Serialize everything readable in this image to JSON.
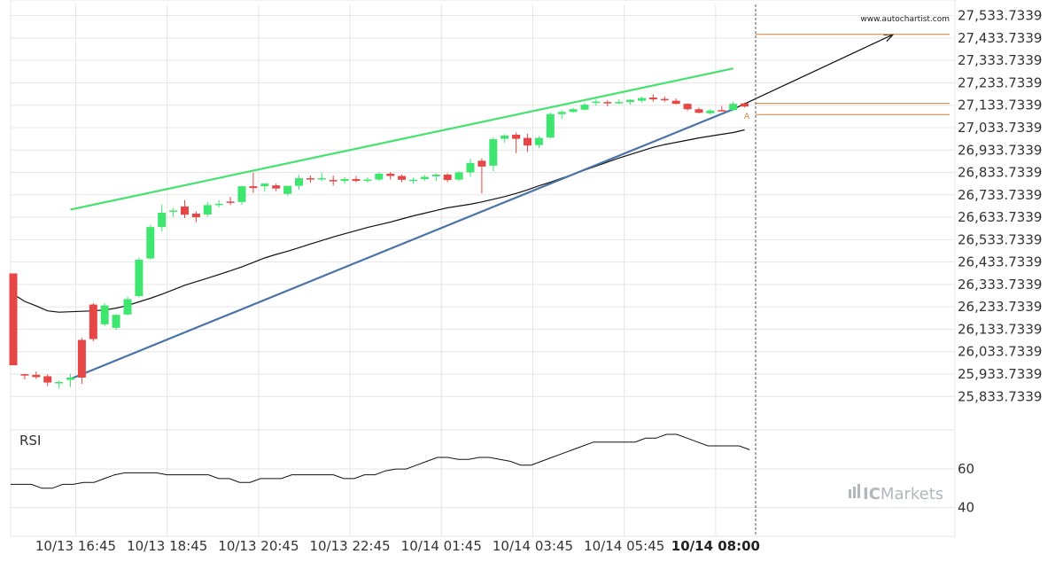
{
  "watermark": "www.autochartist.com",
  "brand": {
    "prefix": "IC",
    "name": "Markets",
    "color": "#b0b8bc"
  },
  "colors": {
    "bull": "#3ee66f",
    "bear": "#e64646",
    "resistance": "#45e270",
    "support": "#4a73a8",
    "projection": "#111111",
    "level": "#d08030",
    "ma": "#111111",
    "grid": "#e6e6e6"
  },
  "chart_data": [
    {
      "type": "candlestick",
      "title": "",
      "ylim": [
        25743.7339,
        27583.7339
      ],
      "y_ticks": [
        "27,533.7339",
        "27,433.7339",
        "27,333.7339",
        "27,233.7339",
        "27,133.7339",
        "27,033.7339",
        "26,933.7339",
        "26,833.7339",
        "26,733.7339",
        "26,633.7339",
        "26,533.7339",
        "26,433.7339",
        "26,333.7339",
        "26,233.7339",
        "26,133.7339",
        "26,033.7339",
        "25,933.7339",
        "25,833.7339"
      ],
      "y_tick_values": [
        27533.7339,
        27433.7339,
        27333.7339,
        27233.7339,
        27133.7339,
        27033.7339,
        26933.7339,
        26833.7339,
        26733.7339,
        26633.7339,
        26533.7339,
        26433.7339,
        26333.7339,
        26233.7339,
        26133.7339,
        26033.7339,
        25933.7339,
        25833.7339
      ],
      "x_ticks": [
        "10/13 16:45",
        "10/13 18:45",
        "10/13 20:45",
        "10/13 22:45",
        "10/14 01:45",
        "10/14 03:45",
        "10/14 05:45",
        "10/14 08:00"
      ],
      "x_tick_index": [
        5,
        13,
        21,
        29,
        37,
        45,
        53,
        61
      ],
      "highlight_tick": "10/14 08:00",
      "candles": [
        [
          26383,
          26383,
          25973,
          25973
        ],
        [
          25933,
          25935,
          25910,
          25930
        ],
        [
          25930,
          25945,
          25912,
          25920
        ],
        [
          25924,
          25933,
          25880,
          25896
        ],
        [
          25898,
          25904,
          25868,
          25898
        ],
        [
          25908,
          25935,
          25876,
          25918
        ],
        [
          26086,
          26095,
          25890,
          25918
        ],
        [
          26244,
          26250,
          26080,
          26090
        ],
        [
          26156,
          26250,
          26148,
          26240
        ],
        [
          26140,
          26200,
          26130,
          26198
        ],
        [
          26200,
          26280,
          26196,
          26268
        ],
        [
          26282,
          26454,
          26276,
          26444
        ],
        [
          26450,
          26600,
          26444,
          26590
        ],
        [
          26590,
          26690,
          26570,
          26654
        ],
        [
          26658,
          26675,
          26635,
          26664
        ],
        [
          26682,
          26710,
          26630,
          26645
        ],
        [
          26650,
          26660,
          26612,
          26634
        ],
        [
          26646,
          26703,
          26636,
          26688
        ],
        [
          26692,
          26710,
          26678,
          26694
        ],
        [
          26704,
          26725,
          26688,
          26698
        ],
        [
          26702,
          26775,
          26690,
          26772
        ],
        [
          26772,
          26832,
          26742,
          26764
        ],
        [
          26772,
          26784,
          26748,
          26784
        ],
        [
          26776,
          26784,
          26750,
          26762
        ],
        [
          26738,
          26774,
          26730,
          26774
        ],
        [
          26774,
          26822,
          26758,
          26808
        ],
        [
          26808,
          26820,
          26788,
          26806
        ],
        [
          26807,
          26833,
          26796,
          26808
        ],
        [
          26800,
          26820,
          26775,
          26796
        ],
        [
          26796,
          26812,
          26784,
          26804
        ],
        [
          26804,
          26818,
          26790,
          26796
        ],
        [
          26797,
          26812,
          26788,
          26802
        ],
        [
          26802,
          26834,
          26796,
          26828
        ],
        [
          26828,
          26836,
          26802,
          26818
        ],
        [
          26818,
          26824,
          26790,
          26801
        ],
        [
          26799,
          26810,
          26784,
          26801
        ],
        [
          26804,
          26822,
          26796,
          26814
        ],
        [
          26816,
          26830,
          26795,
          26824
        ],
        [
          26824,
          26830,
          26790,
          26800
        ],
        [
          26802,
          26840,
          26795,
          26834
        ],
        [
          26834,
          26894,
          26814,
          26876
        ],
        [
          26886,
          26896,
          26740,
          26860
        ],
        [
          26864,
          26990,
          26840,
          26982
        ],
        [
          26984,
          27004,
          26966,
          26998
        ],
        [
          27002,
          27012,
          26920,
          26984
        ],
        [
          26988,
          27006,
          26926,
          26954
        ],
        [
          26956,
          26996,
          26942,
          26988
        ],
        [
          26990,
          27102,
          26984,
          27094
        ],
        [
          27094,
          27112,
          27072,
          27104
        ],
        [
          27104,
          27122,
          27100,
          27116
        ],
        [
          27114,
          27144,
          27110,
          27136
        ],
        [
          27146,
          27160,
          27132,
          27150
        ],
        [
          27148,
          27156,
          27128,
          27144
        ],
        [
          27146,
          27160,
          27140,
          27148
        ],
        [
          27148,
          27160,
          27136,
          27158
        ],
        [
          27154,
          27172,
          27146,
          27166
        ],
        [
          27168,
          27182,
          27150,
          27160
        ],
        [
          27162,
          27172,
          27148,
          27156
        ],
        [
          27154,
          27164,
          27138,
          27140
        ],
        [
          27140,
          27142,
          27108,
          27116
        ],
        [
          27116,
          27124,
          27098,
          27100
        ],
        [
          27098,
          27116,
          27092,
          27110
        ],
        [
          27112,
          27130,
          27106,
          27110
        ],
        [
          27112,
          27150,
          27108,
          27140
        ],
        [
          27142,
          27146,
          27124,
          27128
        ]
      ],
      "moving_average": [
        26290,
        26258,
        26238,
        26216,
        26210,
        26212,
        26214,
        26216,
        26220,
        26228,
        26240,
        26256,
        26272,
        26290,
        26310,
        26330,
        26346,
        26362,
        26378,
        26395,
        26412,
        26432,
        26452,
        26468,
        26482,
        26498,
        26514,
        26530,
        26546,
        26560,
        26574,
        26588,
        26600,
        26612,
        26626,
        26640,
        26652,
        26664,
        26676,
        26684,
        26692,
        26702,
        26714,
        26726,
        26740,
        26756,
        26774,
        26790,
        26808,
        26826,
        26844,
        26862,
        26880,
        26898,
        26914,
        26930,
        26946,
        26958,
        26968,
        26978,
        26988,
        26996,
        27004,
        27012,
        27024
      ],
      "resistance_line": {
        "from": [
          5,
          26668
        ],
        "to": [
          63,
          27298
        ]
      },
      "support_line": {
        "from": [
          5,
          25912
        ],
        "to": [
          63,
          27116
        ]
      },
      "projection": {
        "from": [
          63,
          27116
        ],
        "to": [
          77,
          27450
        ]
      },
      "levels": [
        27450,
        27142,
        27092
      ],
      "pattern_label": "A"
    },
    {
      "type": "line",
      "title": "",
      "name": "RSI",
      "ylim": [
        25,
        78
      ],
      "y_ticks": [
        "60",
        "40"
      ],
      "y_tick_values": [
        60,
        40
      ],
      "values": [
        52,
        52,
        52,
        50,
        50,
        52,
        52,
        53,
        53,
        55,
        57,
        58,
        58,
        58,
        58,
        57,
        57,
        57,
        57,
        57,
        55,
        55,
        53,
        53,
        55,
        55,
        55,
        57,
        57,
        57,
        57,
        57,
        55,
        55,
        57,
        57,
        59,
        60,
        60,
        62,
        64,
        66,
        66,
        65,
        65,
        66,
        66,
        65,
        64,
        62,
        62,
        64,
        66,
        68,
        70,
        72,
        74,
        74,
        74,
        74,
        74,
        76,
        76,
        78,
        78,
        76,
        74,
        72,
        72,
        72,
        72,
        70
      ]
    }
  ]
}
